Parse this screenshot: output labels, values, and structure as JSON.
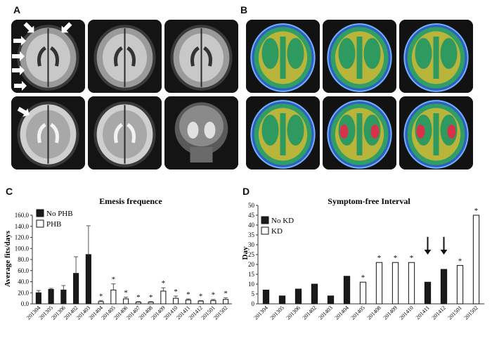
{
  "panels": {
    "a": "A",
    "b": "B",
    "c": "C",
    "d": "D"
  },
  "colors": {
    "bar_fill": "#1a1a1a",
    "bar_open": "#ffffff",
    "axis": "#333333"
  },
  "imaging": {
    "panel_a": {
      "rows": [
        [
          "mri-t1-axial-1",
          "mri-t1-axial-2",
          "mri-t1-axial-3"
        ],
        [
          "mri-t2-axial-1",
          "mri-t2-axial-2",
          "mri-t2-coronal"
        ]
      ],
      "arrows": "white-arrow-icon"
    },
    "panel_b": {
      "rows": [
        [
          "pet-axial-1",
          "pet-axial-2",
          "pet-axial-3"
        ],
        [
          "pet-axial-4",
          "pet-axial-5",
          "pet-axial-6"
        ]
      ]
    }
  },
  "chart_data": [
    {
      "type": "bar",
      "title": "Emesis frequence",
      "xlabel": "",
      "ylabel": "Average fits/days",
      "ylim": [
        0,
        160
      ],
      "yticks": [
        "0.0",
        "20.0",
        "40.0",
        "60.0",
        "80.0",
        "100.0",
        "120.0",
        "140.0",
        "160.0"
      ],
      "categories": [
        "201304",
        "201305",
        "201306",
        "201402",
        "201403",
        "201404",
        "201405",
        "201406",
        "201407",
        "201408",
        "201409",
        "201410",
        "201411",
        "201412",
        "201501",
        "201502"
      ],
      "series": [
        {
          "name": "No PHB",
          "values": [
            20,
            26,
            25,
            55,
            89,
            null,
            null,
            null,
            null,
            null,
            null,
            null,
            null,
            null,
            null,
            null
          ],
          "errors": [
            4,
            2,
            8,
            30,
            52,
            null,
            null,
            null,
            null,
            null,
            null,
            null,
            null,
            null,
            null,
            null
          ]
        },
        {
          "name": "PHB",
          "values": [
            null,
            null,
            null,
            null,
            null,
            4,
            25,
            9,
            3,
            3,
            23,
            10,
            7,
            5,
            6,
            8
          ],
          "errors": [
            null,
            null,
            null,
            null,
            null,
            2,
            11,
            3,
            1,
            1,
            6,
            4,
            2,
            1,
            2,
            3
          ]
        }
      ],
      "significance": [
        false,
        false,
        false,
        false,
        false,
        true,
        true,
        true,
        true,
        true,
        true,
        true,
        true,
        true,
        true,
        true
      ],
      "star": "*",
      "legend": "top-left"
    },
    {
      "type": "bar",
      "title": "Symptom-free Interval",
      "xlabel": "",
      "ylabel": "Day",
      "ylim": [
        0,
        50
      ],
      "yticks": [
        "0",
        "5",
        "10",
        "15",
        "20",
        "25",
        "30",
        "35",
        "40",
        "45",
        "50"
      ],
      "categories": [
        "201304",
        "201305",
        "201306",
        "201402",
        "201403",
        "201404",
        "201405",
        "201408",
        "201409",
        "201410",
        "201411",
        "201412",
        "201501",
        "201502"
      ],
      "series": [
        {
          "name": "No KD",
          "values": [
            7,
            4,
            7.5,
            10,
            4,
            14,
            null,
            null,
            null,
            null,
            11,
            17.5,
            null,
            null
          ]
        },
        {
          "name": "KD",
          "values": [
            null,
            null,
            null,
            null,
            null,
            null,
            11,
            21,
            21,
            21,
            null,
            null,
            19.5,
            45
          ]
        }
      ],
      "significance": [
        false,
        false,
        false,
        false,
        false,
        false,
        true,
        true,
        true,
        true,
        false,
        false,
        true,
        true
      ],
      "star": "*",
      "arrows_at": [
        "201411",
        "201412"
      ],
      "legend": "top-left"
    }
  ]
}
